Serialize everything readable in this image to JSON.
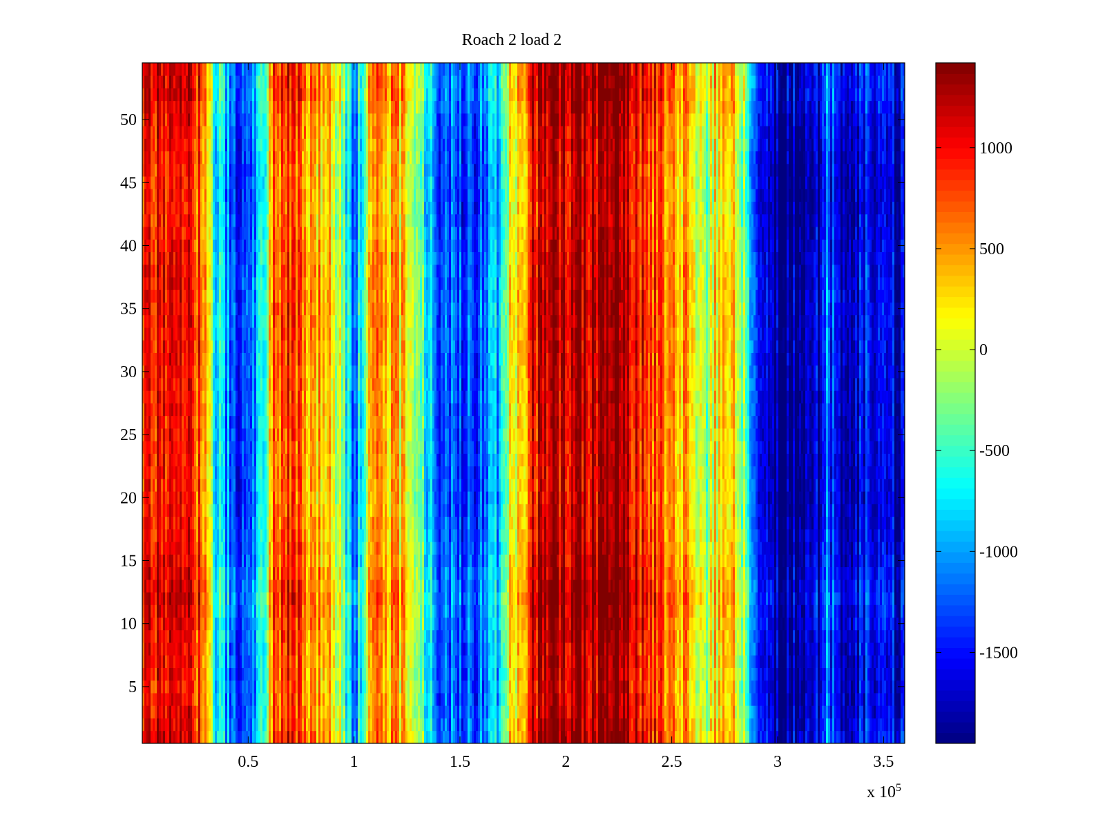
{
  "chart_data": {
    "type": "heatmap",
    "title": "Roach 2 load 2",
    "xlabel": "",
    "ylabel": "",
    "x_exponent_label": "x 10",
    "x_exponent_power": "5",
    "xlim": [
      0,
      360000
    ],
    "ylim": [
      0.5,
      54.5
    ],
    "xticks": [
      50000,
      100000,
      150000,
      200000,
      250000,
      300000,
      350000
    ],
    "xtick_labels": [
      "0.5",
      "1",
      "1.5",
      "2",
      "2.5",
      "3",
      "3.5"
    ],
    "yticks": [
      5,
      10,
      15,
      20,
      25,
      30,
      35,
      40,
      45,
      50
    ],
    "ytick_labels": [
      "5",
      "10",
      "15",
      "20",
      "25",
      "30",
      "35",
      "40",
      "45",
      "50"
    ],
    "rows": 54,
    "colormap": "jet",
    "clim": [
      -1950,
      1420
    ],
    "colorbar_ticks": [
      1000,
      500,
      0,
      -500,
      -1000,
      -1500
    ],
    "colorbar_labels": [
      "1000",
      "500",
      "0",
      "-500",
      "-1000",
      "-1500"
    ],
    "column_profile": {
      "x": [
        0,
        10000,
        20000,
        30000,
        33000,
        38000,
        45000,
        50000,
        55000,
        58000,
        62000,
        70000,
        80000,
        90000,
        95000,
        100000,
        105000,
        110000,
        120000,
        130000,
        135000,
        140000,
        150000,
        160000,
        170000,
        172000,
        180000,
        185000,
        190000,
        200000,
        210000,
        220000,
        225000,
        230000,
        240000,
        250000,
        260000,
        265000,
        270000,
        280000,
        285000,
        290000,
        295000,
        300000,
        310000,
        320000,
        322000,
        330000,
        340000,
        350000,
        360000
      ],
      "values": [
        900,
        1000,
        950,
        700,
        -400,
        -900,
        -1300,
        -1200,
        -800,
        -400,
        600,
        900,
        500,
        300,
        -300,
        -1200,
        -200,
        600,
        400,
        0,
        -800,
        -1200,
        -1300,
        -1200,
        -800,
        100,
        200,
        1100,
        1200,
        1300,
        1200,
        1350,
        1400,
        1100,
        800,
        600,
        400,
        -300,
        200,
        300,
        -400,
        -1100,
        -1700,
        -1800,
        -1850,
        -1700,
        -1100,
        -1600,
        -1500,
        -1600,
        -1650
      ]
    },
    "row_profile": {
      "y": [
        1,
        3,
        5,
        8,
        10,
        12,
        15,
        18,
        20,
        22,
        25,
        28,
        30,
        33,
        35,
        38,
        40,
        43,
        45,
        48,
        50,
        52,
        54
      ],
      "offsets": [
        100,
        0,
        -50,
        0,
        50,
        150,
        0,
        -50,
        -100,
        -80,
        -60,
        -40,
        -20,
        0,
        20,
        0,
        -50,
        -120,
        -100,
        -60,
        0,
        150,
        100
      ]
    }
  }
}
